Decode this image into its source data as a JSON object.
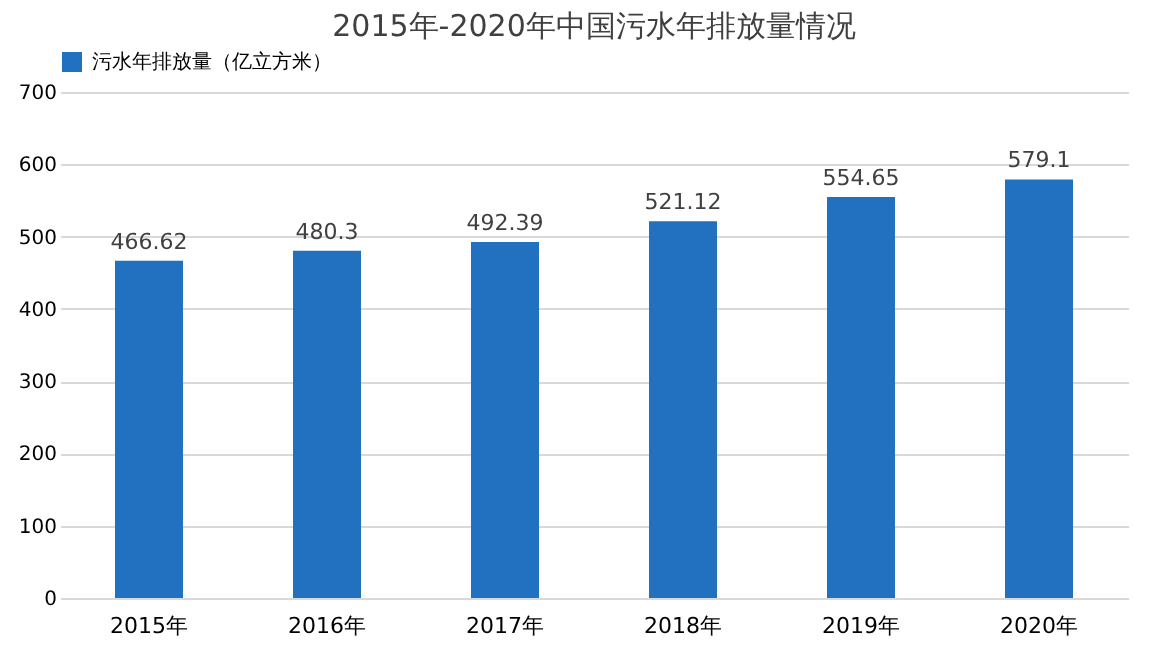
{
  "chart_data": {
    "type": "bar",
    "title": "2015年-2020年中国污水年排放量情况",
    "categories": [
      "2015年",
      "2016年",
      "2017年",
      "2018年",
      "2019年",
      "2020年"
    ],
    "series": [
      {
        "name": "污水年排放量（亿立方米）",
        "color": "#2270c0",
        "values": [
          466.62,
          480.3,
          492.39,
          521.12,
          554.65,
          579.1
        ]
      }
    ],
    "ylim": [
      0,
      700
    ],
    "yticks": [
      0,
      100,
      200,
      300,
      400,
      500,
      600,
      700
    ],
    "grid": "y",
    "legend": "top",
    "data_labels": true
  }
}
